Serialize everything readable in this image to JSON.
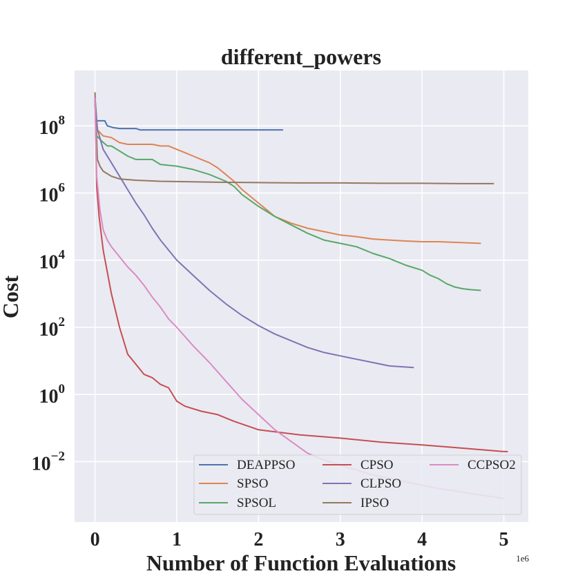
{
  "chart_data": {
    "type": "line",
    "title": "different_powers",
    "xlabel": "Number of Function Evaluations",
    "ylabel": "Cost",
    "x_offset_label": "1e6",
    "x_scale": "linear",
    "y_scale": "log",
    "xlim": [
      -0.25,
      5.3
    ],
    "ylim_log10": [
      -3.8,
      9.65
    ],
    "x_ticks": [
      0,
      1,
      2,
      3,
      4,
      5
    ],
    "y_ticks": [
      {
        "base": "10",
        "exp": "8"
      },
      {
        "base": "10",
        "exp": "6"
      },
      {
        "base": "10",
        "exp": "4"
      },
      {
        "base": "10",
        "exp": "2"
      },
      {
        "base": "10",
        "exp": "0"
      },
      {
        "base": "10",
        "exp": "−2"
      }
    ],
    "y_tick_exponents": [
      8,
      6,
      4,
      2,
      0,
      -2
    ],
    "grid": true,
    "background": "#eaeaf2",
    "legend": {
      "position": "lower-right",
      "columns": 3
    },
    "series": [
      {
        "name": "DEAPPSO",
        "color": "#4c72b0",
        "x": [
          0.0,
          0.01,
          0.12,
          0.15,
          0.22,
          0.3,
          0.5,
          0.55,
          1.0,
          1.5,
          2.0,
          2.3
        ],
        "log10_y": [
          8.65,
          8.15,
          8.15,
          8.0,
          7.95,
          7.92,
          7.92,
          7.88,
          7.88,
          7.88,
          7.88,
          7.88
        ]
      },
      {
        "name": "SPSO",
        "color": "#dd8452",
        "x": [
          0.0,
          0.02,
          0.06,
          0.1,
          0.2,
          0.3,
          0.4,
          0.45,
          0.7,
          0.8,
          0.9,
          1.0,
          1.1,
          1.2,
          1.3,
          1.4,
          1.5,
          1.6,
          1.7,
          1.8,
          2.0,
          2.2,
          2.4,
          2.6,
          2.8,
          3.0,
          3.2,
          3.4,
          3.6,
          3.8,
          4.0,
          4.2,
          4.5,
          4.72
        ],
        "log10_y": [
          8.85,
          7.9,
          7.8,
          7.7,
          7.65,
          7.5,
          7.45,
          7.45,
          7.45,
          7.4,
          7.4,
          7.3,
          7.2,
          7.1,
          7.0,
          6.9,
          6.75,
          6.55,
          6.35,
          6.1,
          5.7,
          5.3,
          5.1,
          4.95,
          4.85,
          4.75,
          4.7,
          4.63,
          4.6,
          4.57,
          4.55,
          4.55,
          4.52,
          4.5
        ]
      },
      {
        "name": "SPSOL",
        "color": "#55a868",
        "x": [
          0.0,
          0.02,
          0.08,
          0.15,
          0.2,
          0.3,
          0.4,
          0.5,
          0.7,
          0.8,
          1.0,
          1.2,
          1.4,
          1.6,
          1.7,
          1.8,
          2.0,
          2.2,
          2.4,
          2.6,
          2.8,
          3.0,
          3.2,
          3.4,
          3.6,
          3.8,
          4.0,
          4.1,
          4.2,
          4.3,
          4.4,
          4.5,
          4.6,
          4.72
        ],
        "log10_y": [
          8.85,
          7.7,
          7.55,
          7.4,
          7.4,
          7.25,
          7.1,
          7.0,
          7.0,
          6.85,
          6.8,
          6.7,
          6.55,
          6.35,
          6.2,
          5.95,
          5.6,
          5.3,
          5.05,
          4.8,
          4.6,
          4.5,
          4.4,
          4.2,
          4.05,
          3.85,
          3.7,
          3.55,
          3.45,
          3.3,
          3.2,
          3.15,
          3.12,
          3.1
        ]
      },
      {
        "name": "CPSO",
        "color": "#c44e52",
        "x": [
          0.0,
          0.02,
          0.05,
          0.1,
          0.2,
          0.3,
          0.4,
          0.5,
          0.6,
          0.7,
          0.8,
          0.9,
          1.0,
          1.1,
          1.3,
          1.5,
          1.7,
          2.0,
          2.5,
          3.0,
          3.5,
          4.0,
          4.5,
          5.0,
          5.05
        ],
        "log10_y": [
          8.85,
          6.2,
          5.3,
          4.3,
          3.0,
          2.0,
          1.2,
          0.9,
          0.6,
          0.5,
          0.3,
          0.2,
          -0.2,
          -0.35,
          -0.5,
          -0.6,
          -0.8,
          -1.05,
          -1.2,
          -1.3,
          -1.42,
          -1.5,
          -1.6,
          -1.7,
          -1.7
        ]
      },
      {
        "name": "CLPSO",
        "color": "#8172b3",
        "x": [
          0.0,
          0.03,
          0.1,
          0.2,
          0.3,
          0.4,
          0.5,
          0.6,
          0.7,
          0.8,
          0.9,
          1.0,
          1.2,
          1.4,
          1.6,
          1.8,
          2.0,
          2.2,
          2.4,
          2.6,
          2.8,
          3.0,
          3.2,
          3.4,
          3.6,
          3.9
        ],
        "log10_y": [
          8.85,
          7.9,
          7.3,
          6.9,
          6.5,
          6.1,
          5.7,
          5.35,
          4.95,
          4.6,
          4.3,
          4.0,
          3.55,
          3.1,
          2.7,
          2.35,
          2.05,
          1.8,
          1.6,
          1.4,
          1.25,
          1.15,
          1.05,
          0.95,
          0.85,
          0.8
        ]
      },
      {
        "name": "IPSO",
        "color": "#937860",
        "x": [
          0.0,
          0.01,
          0.03,
          0.06,
          0.1,
          0.2,
          0.3,
          0.5,
          0.8,
          1.0,
          1.5,
          2.0,
          2.5,
          3.0,
          3.5,
          4.0,
          4.5,
          4.88
        ],
        "log10_y": [
          9.0,
          8.2,
          7.0,
          6.8,
          6.65,
          6.5,
          6.42,
          6.38,
          6.35,
          6.34,
          6.32,
          6.31,
          6.3,
          6.3,
          6.29,
          6.29,
          6.28,
          6.28
        ]
      },
      {
        "name": "CCPSO2",
        "color": "#da8bc3",
        "x": [
          0.0,
          0.02,
          0.06,
          0.1,
          0.15,
          0.2,
          0.3,
          0.4,
          0.5,
          0.6,
          0.7,
          0.8,
          0.9,
          1.0,
          1.2,
          1.4,
          1.6,
          1.8,
          2.0,
          2.2,
          2.4,
          2.6,
          2.8,
          3.0,
          3.2,
          3.4,
          3.6,
          3.8,
          4.0,
          4.2,
          4.4,
          4.6,
          4.8,
          5.0
        ],
        "log10_y": [
          8.85,
          6.5,
          5.5,
          4.9,
          4.6,
          4.4,
          4.1,
          3.8,
          3.55,
          3.25,
          2.9,
          2.6,
          2.25,
          2.0,
          1.45,
          0.95,
          0.4,
          -0.15,
          -0.6,
          -1.05,
          -1.4,
          -1.75,
          -1.95,
          -2.1,
          -2.25,
          -2.4,
          -2.5,
          -2.6,
          -2.7,
          -2.8,
          -2.87,
          -2.95,
          -3.02,
          -3.1
        ]
      }
    ]
  }
}
